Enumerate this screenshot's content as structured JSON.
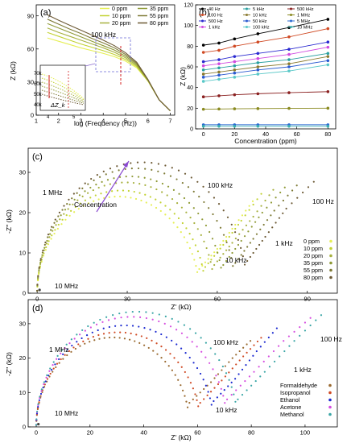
{
  "colors": {
    "axis": "#000000",
    "zoom_box": "#6b6bd6",
    "marker_red": "#d62020",
    "inset_arrow": "#8a6ad0",
    "conc_arrow": "#8a4ad0",
    "conc_palette": [
      "#e6ef55",
      "#c2d232",
      "#a7b13f",
      "#8f9a37",
      "#7e7a36",
      "#6d5a35"
    ],
    "solvent_palette": [
      "#9a6a30",
      "#d04a24",
      "#1c2ad0",
      "#d64ee0",
      "#3aa6a6"
    ]
  },
  "chart_data": [
    {
      "id": "a",
      "type": "line",
      "panel_label": "(a)",
      "xlabel": "log (Frequency (Hz))",
      "ylabel": "Z (kΩ)",
      "xlim": [
        1,
        7.2
      ],
      "ylim": [
        0,
        100
      ],
      "xticks": [
        "1",
        "2",
        "3",
        "4",
        "5",
        "6",
        "7"
      ],
      "yticks": [
        "0",
        "30",
        "60",
        "90"
      ],
      "x": [
        1.5,
        2.0,
        2.5,
        3.0,
        3.5,
        4.0,
        4.5,
        5.0,
        5.5,
        6.0,
        6.5,
        7.0
      ],
      "series": [
        {
          "name": "0 ppm",
          "values": [
            70.0,
            67.0,
            64.0,
            61.0,
            58.5,
            56.0,
            53.0,
            49.0,
            43.0,
            31.0,
            14.0,
            4.0
          ]
        },
        {
          "name": "10 ppm",
          "values": [
            75.0,
            71.5,
            68.0,
            64.5,
            61.5,
            58.5,
            55.0,
            50.5,
            44.0,
            31.0,
            14.0,
            4.0
          ]
        },
        {
          "name": "20 ppm",
          "values": [
            79.0,
            75.0,
            71.5,
            68.0,
            64.5,
            61.0,
            57.0,
            52.0,
            45.0,
            31.5,
            14.0,
            4.0
          ]
        },
        {
          "name": "35 ppm",
          "values": [
            83.0,
            79.0,
            75.0,
            71.0,
            67.0,
            63.0,
            59.0,
            53.5,
            46.0,
            32.0,
            14.0,
            4.0
          ]
        },
        {
          "name": "55 ppm",
          "values": [
            87.0,
            82.5,
            78.0,
            74.0,
            69.5,
            65.5,
            61.0,
            55.0,
            47.0,
            32.0,
            14.0,
            4.0
          ]
        },
        {
          "name": "80 ppm",
          "values": [
            91.0,
            86.0,
            81.5,
            77.0,
            72.5,
            68.0,
            63.0,
            56.5,
            48.0,
            32.5,
            14.0,
            4.0
          ]
        }
      ],
      "annotations": [
        "100 kHz"
      ],
      "inset": {
        "xticks": [
          "4",
          "5"
        ],
        "yticks": [
          "40k",
          "50k",
          "60k",
          "70k"
        ],
        "label": "ΔZ_k"
      }
    },
    {
      "id": "b",
      "type": "line",
      "panel_label": "(b)",
      "xlabel": "Concentration (ppm)",
      "ylabel": "Z (kΩ)",
      "xlim": [
        -5,
        85
      ],
      "ylim": [
        0,
        120
      ],
      "xticks": [
        "0",
        "20",
        "40",
        "60",
        "80"
      ],
      "yticks": [
        "0",
        "20",
        "40",
        "60",
        "80",
        "100",
        "120"
      ],
      "x": [
        0,
        10,
        20,
        35,
        55,
        80
      ],
      "series": [
        {
          "name": "40 Hz",
          "values": [
            81,
            83,
            87,
            92,
            98,
            106
          ]
        },
        {
          "name": "100 Hz",
          "values": [
            74,
            76,
            80,
            84,
            89,
            97
          ]
        },
        {
          "name": "500 Hz",
          "values": [
            65,
            67,
            70,
            73,
            77,
            84
          ]
        },
        {
          "name": "1 kHz",
          "values": [
            61,
            63,
            65,
            68,
            72,
            79
          ]
        },
        {
          "name": "5 kHz",
          "values": [
            57,
            59,
            61,
            64,
            67,
            73
          ]
        },
        {
          "name": "10 kHz",
          "values": [
            53,
            55,
            57,
            60,
            63,
            70
          ]
        },
        {
          "name": "50 kHz",
          "values": [
            50,
            52,
            54,
            57,
            60,
            66
          ]
        },
        {
          "name": "100 kHz",
          "values": [
            46,
            48,
            50,
            53,
            56,
            62
          ]
        },
        {
          "name": "500 kHz",
          "values": [
            31,
            32,
            33,
            34,
            35,
            36
          ]
        },
        {
          "name": "1 MHz",
          "values": [
            19,
            19.2,
            19.4,
            19.6,
            19.8,
            20
          ]
        },
        {
          "name": "5 MHz",
          "values": [
            4,
            4,
            4,
            4,
            4,
            4
          ]
        },
        {
          "name": "10 MHz",
          "values": [
            2.5,
            2.5,
            2.5,
            2.5,
            2.5,
            2.5
          ]
        }
      ]
    },
    {
      "id": "c",
      "type": "scatter",
      "panel_label": "(c)",
      "xlabel": "Z' (kΩ)",
      "ylabel": "-Z'' (kΩ)",
      "xlim": [
        -3,
        100
      ],
      "ylim": [
        0,
        36
      ],
      "xticks": [
        "0",
        "30",
        "60",
        "90"
      ],
      "yticks": [
        "0",
        "10",
        "20",
        "30"
      ],
      "series": [
        {
          "name": "0  ppm",
          "arc_end": 54,
          "arc_peak": 24,
          "spur": [
            [
              54,
              6
            ],
            [
              60,
              11
            ],
            [
              66,
              17
            ],
            [
              73,
              24
            ]
          ]
        },
        {
          "name": "10 ppm",
          "arc_end": 56,
          "arc_peak": 25.5,
          "spur": [
            [
              56,
              6.5
            ],
            [
              62,
              12
            ],
            [
              68,
              18
            ],
            [
              76,
              26
            ]
          ]
        },
        {
          "name": "20 ppm",
          "arc_end": 59,
          "arc_peak": 27.5,
          "spur": [
            [
              59,
              7
            ],
            [
              65,
              12.5
            ],
            [
              72,
              19
            ],
            [
              80,
              27
            ]
          ]
        },
        {
          "name": "35 ppm",
          "arc_end": 62,
          "arc_peak": 29,
          "spur": [
            [
              62,
              7
            ],
            [
              68,
              13
            ],
            [
              75,
              20
            ],
            [
              84,
              27.5
            ]
          ]
        },
        {
          "name": "55 ppm",
          "arc_end": 66,
          "arc_peak": 31,
          "spur": [
            [
              66,
              7.5
            ],
            [
              72,
              13.5
            ],
            [
              79,
              20.5
            ],
            [
              88,
              28
            ]
          ]
        },
        {
          "name": "80 ppm",
          "arc_end": 70,
          "arc_peak": 32.5,
          "spur": [
            [
              70,
              8
            ],
            [
              76,
              14
            ],
            [
              83,
              21
            ],
            [
              94,
              29
            ]
          ]
        }
      ],
      "annotations": [
        "1 MHz",
        "100 kHz",
        "Concentration",
        "100 Hz",
        "1 kHz",
        "10 kHz",
        "10 MHz"
      ]
    },
    {
      "id": "d",
      "type": "scatter",
      "panel_label": "(d)",
      "xlabel": "Z' (kΩ)",
      "ylabel": "-Z'' (kΩ)",
      "xlim": [
        -3,
        112
      ],
      "ylim": [
        0,
        37
      ],
      "xticks": [
        "0",
        "20",
        "40",
        "60",
        "80",
        "100"
      ],
      "yticks": [
        "0",
        "10",
        "20",
        "30"
      ],
      "series": [
        {
          "name": "Formaldehyde",
          "arc_end": 57,
          "arc_peak": 26,
          "spur": [
            [
              57,
              7
            ],
            [
              65,
              13
            ],
            [
              73,
              20
            ],
            [
              81,
              26
            ]
          ]
        },
        {
          "name": "Isopropanol",
          "arc_end": 61,
          "arc_peak": 27.5,
          "spur": [
            [
              61,
              7
            ],
            [
              69,
              13.5
            ],
            [
              77,
              20.5
            ],
            [
              85,
              27
            ]
          ]
        },
        {
          "name": "Ethanol",
          "arc_end": 66,
          "arc_peak": 29.5,
          "spur": [
            [
              66,
              7.5
            ],
            [
              74,
              14
            ],
            [
              82,
              22
            ],
            [
              91,
              30
            ]
          ]
        },
        {
          "name": "Acetone",
          "arc_end": 71,
          "arc_peak": 32,
          "spur": [
            [
              71,
              8
            ],
            [
              81,
              16
            ],
            [
              92,
              25
            ],
            [
              104,
              33
            ]
          ]
        },
        {
          "name": "Methanol",
          "arc_end": 75,
          "arc_peak": 33.5,
          "spur": [
            [
              75,
              8
            ],
            [
              85,
              16
            ],
            [
              96,
              25
            ],
            [
              108,
              34
            ]
          ]
        }
      ],
      "annotations": [
        "1 MHz",
        "100 kHz",
        "100 Hz",
        "1 kHz",
        "10 kHz",
        "10 MHz"
      ]
    }
  ]
}
